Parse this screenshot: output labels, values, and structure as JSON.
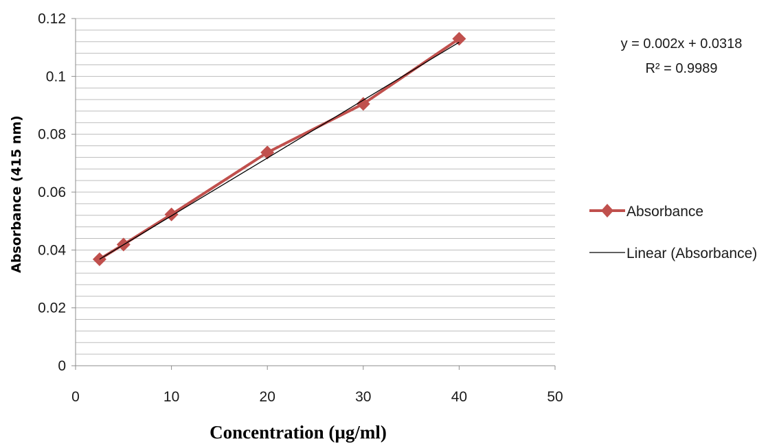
{
  "chart_data": {
    "type": "line",
    "xlabel": "Concentration (µg/ml)",
    "ylabel": "Absorbance (415 nm)",
    "xlim": [
      0,
      50
    ],
    "ylim": [
      0,
      0.12
    ],
    "x_ticks": [
      "0",
      "10",
      "20",
      "30",
      "40",
      "50"
    ],
    "y_ticks": [
      "0",
      "0.02",
      "0.04",
      "0.06",
      "0.08",
      "0.1",
      "0.12"
    ],
    "grid": true,
    "legend_position": "right",
    "series": [
      {
        "name": "Absorbance",
        "color": "#c0504d",
        "marker": "diamond",
        "x": [
          2.5,
          5,
          10,
          20,
          30,
          40
        ],
        "y": [
          0.0368,
          0.0419,
          0.0523,
          0.0737,
          0.0905,
          0.113
        ]
      }
    ],
    "trendline": {
      "name": "Linear (Absorbance)",
      "color": "#000000",
      "slope": 0.002,
      "intercept": 0.0318,
      "x_range": [
        2.5,
        40
      ]
    },
    "annotations": {
      "equation": "y = 0.002x + 0.0318",
      "r_squared": "R² = 0.9989"
    }
  }
}
